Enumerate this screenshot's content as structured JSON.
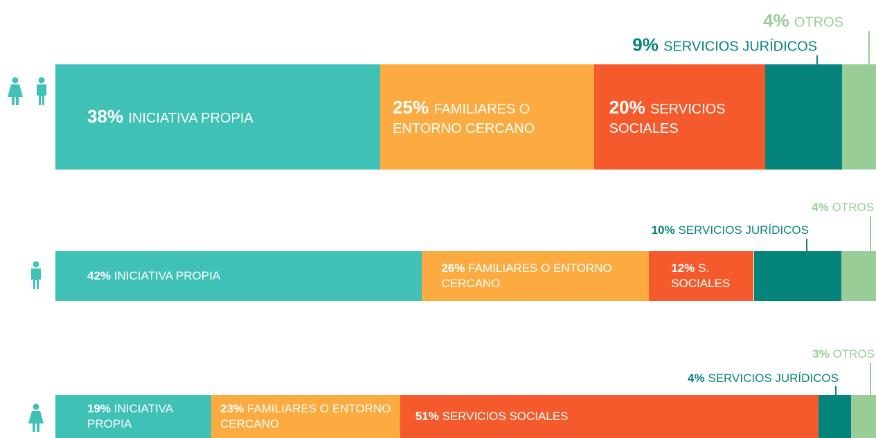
{
  "chart_data": {
    "type": "stacked-bar-horizontal",
    "categories": [
      null,
      null,
      null
    ],
    "series": [
      {
        "name": "INICIATIVA PROPIA",
        "color": "#40c1b6",
        "values": [
          38,
          42,
          19
        ],
        "value_labels": [
          "38%",
          "42%",
          "19%"
        ]
      },
      {
        "name": "FAMILIARES O ENTORNO CERCANO",
        "color": "#fcab40",
        "values": [
          25,
          26,
          23
        ],
        "value_labels": [
          "25%",
          "26%",
          "23%"
        ]
      },
      {
        "name": "SERVICIOS SOCIALES",
        "labels": [
          "SERVICIOS SOCIALES",
          "S. SOCIALES",
          "SERVICIOS SOCIALES"
        ],
        "color": "#f55a2c",
        "values": [
          20,
          12,
          51
        ],
        "value_labels": [
          "20%",
          "12%",
          "51%"
        ]
      },
      {
        "name": "SERVICIOS JURÍDICOS",
        "color": "#05847c",
        "values": [
          9,
          10,
          4
        ],
        "value_labels": [
          "9%",
          "10%",
          "4%"
        ]
      },
      {
        "name": "OTROS",
        "color": "#98cd98",
        "values": [
          4,
          4,
          3
        ],
        "value_labels": [
          "4%",
          "4%",
          "3%"
        ]
      }
    ]
  }
}
